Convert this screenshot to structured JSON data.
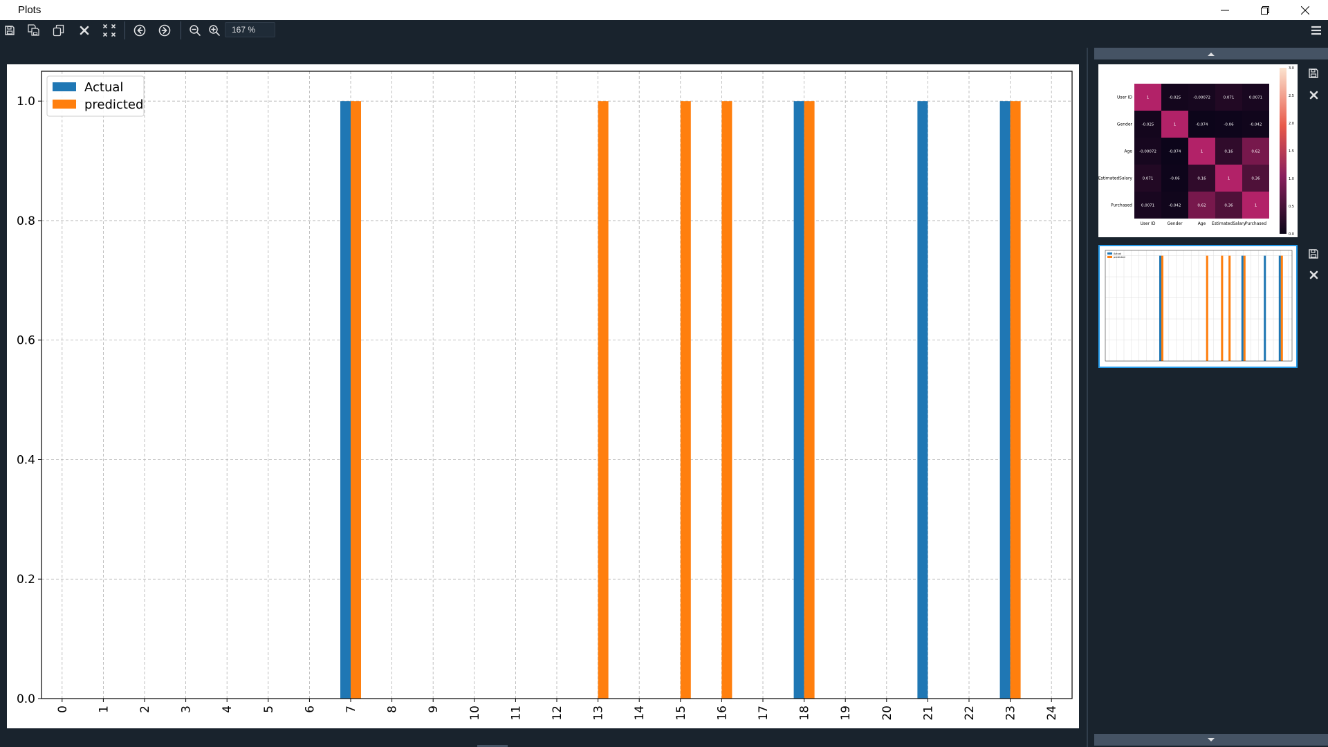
{
  "window": {
    "title": "Plots"
  },
  "toolbar": {
    "zoom_value": "167 %",
    "buttons": [
      "save-icon",
      "save-all-icon",
      "copy-icon",
      "close-icon",
      "close-all-icon",
      "arrow-left-icon",
      "arrow-right-icon",
      "zoom-out-icon",
      "zoom-in-icon"
    ]
  },
  "colors": {
    "accent": "#1f77b4",
    "secondary": "#ff7f0e",
    "panel": "#19232d",
    "selected": "#259ae9"
  },
  "chart_data": {
    "type": "bar",
    "categories": [
      "0",
      "1",
      "2",
      "3",
      "4",
      "5",
      "6",
      "7",
      "8",
      "9",
      "10",
      "11",
      "12",
      "13",
      "14",
      "15",
      "16",
      "17",
      "18",
      "19",
      "20",
      "21",
      "22",
      "23",
      "24"
    ],
    "series": [
      {
        "name": "Actual",
        "color": "#1f77b4",
        "values": [
          0,
          0,
          0,
          0,
          0,
          0,
          0,
          1,
          0,
          0,
          0,
          0,
          0,
          0,
          0,
          0,
          0,
          0,
          1,
          0,
          0,
          1,
          0,
          1,
          0
        ]
      },
      {
        "name": "predicted",
        "color": "#ff7f0e",
        "values": [
          0,
          0,
          0,
          0,
          0,
          0,
          0,
          1,
          0,
          0,
          0,
          0,
          0,
          1,
          0,
          1,
          1,
          0,
          1,
          0,
          0,
          0,
          0,
          1,
          0
        ]
      }
    ],
    "yticks": [
      "0.0",
      "0.2",
      "0.4",
      "0.6",
      "0.8",
      "1.0"
    ],
    "ylim": [
      0,
      1.05
    ],
    "grid": true,
    "legend": "top-left",
    "xlabel_rotation": "vertical"
  },
  "thumbnails": [
    {
      "kind": "heatmap",
      "labels": [
        "User ID",
        "Gender",
        "Age",
        "EstimatedSalary",
        "Purchased"
      ],
      "matrix": [
        [
          "1",
          "-0.025",
          "-0.00072",
          "0.071",
          "0.0071"
        ],
        [
          "-0.025",
          "1",
          "-0.074",
          "-0.06",
          "-0.042"
        ],
        [
          "-0.00072",
          "-0.074",
          "1",
          "0.16",
          "0.62"
        ],
        [
          "0.071",
          "-0.06",
          "0.16",
          "1",
          "0.36"
        ],
        [
          "0.0071",
          "-0.042",
          "0.62",
          "0.36",
          "1"
        ]
      ],
      "values": [
        [
          1,
          -0.025,
          -0.00072,
          0.071,
          0.0071
        ],
        [
          -0.025,
          1,
          -0.074,
          -0.06,
          -0.042
        ],
        [
          -0.00072,
          -0.074,
          1,
          0.16,
          0.62
        ],
        [
          0.071,
          -0.06,
          0.16,
          1,
          0.36
        ],
        [
          0.0071,
          -0.042,
          0.62,
          0.36,
          1
        ]
      ],
      "colorbar_ticks": [
        "3.0",
        "2.5",
        "2.0",
        "1.5",
        "1.0",
        "0.5",
        "0.0"
      ],
      "selected": false
    },
    {
      "kind": "bar-thumbnail",
      "legend": [
        "Actual",
        "predicted"
      ],
      "selected": true
    }
  ]
}
